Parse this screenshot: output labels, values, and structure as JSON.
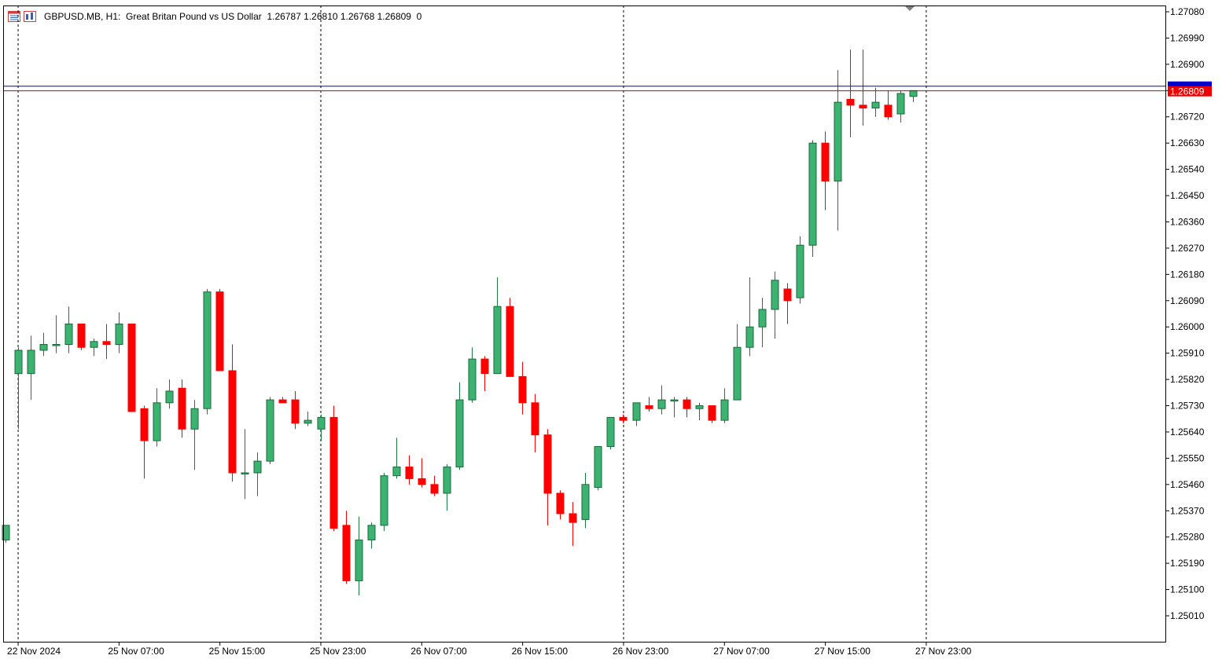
{
  "header": {
    "symbol": "GBPUSD.MB, H1:",
    "description": "Great Britan Pound vs US Dollar",
    "ohlc": "1.26787 1.26810 1.26768 1.26809  0"
  },
  "colors": {
    "bull": "#3cb371",
    "bear": "#ff0000",
    "bid_line": "#0000cc",
    "ask_line": "#cc0000",
    "grid_separator": "#000000",
    "axis": "#000000"
  },
  "icons": [
    "chart-window-icon",
    "indicator-icon"
  ],
  "chart_data": {
    "type": "candlestick",
    "timeframe": "H1",
    "y_range": [
      1.2493,
      1.271
    ],
    "y_ticks": [
      "1.27080",
      "1.26990",
      "1.26900",
      "1.26810",
      "1.26720",
      "1.26630",
      "1.26540",
      "1.26450",
      "1.26360",
      "1.26270",
      "1.26180",
      "1.26090",
      "1.26000",
      "1.25910",
      "1.25820",
      "1.25730",
      "1.25640",
      "1.25550",
      "1.25460",
      "1.25370",
      "1.25280",
      "1.25190",
      "1.25100",
      "1.25010"
    ],
    "x_labels": [
      {
        "index": 1,
        "label": "22 Nov 2024"
      },
      {
        "index": 9,
        "label": "25 Nov 07:00"
      },
      {
        "index": 17,
        "label": "25 Nov 15:00"
      },
      {
        "index": 25,
        "label": "25 Nov 23:00"
      },
      {
        "index": 33,
        "label": "26 Nov 07:00"
      },
      {
        "index": 41,
        "label": "26 Nov 15:00"
      },
      {
        "index": 49,
        "label": "26 Nov 23:00"
      },
      {
        "index": 57,
        "label": "27 Nov 07:00"
      },
      {
        "index": 65,
        "label": "27 Nov 15:00"
      },
      {
        "index": 73,
        "label": "27 Nov 23:00"
      }
    ],
    "separators": [
      1,
      25,
      49,
      73
    ],
    "bid_price": 1.26825,
    "current_price": 1.26809,
    "current_price_label": "1.26809",
    "candles": [
      [
        1.2527,
        1.2532,
        1.2526,
        1.2532
      ],
      [
        1.2584,
        1.2593,
        1.2565,
        1.2592
      ],
      [
        1.2584,
        1.2597,
        1.2575,
        1.2592
      ],
      [
        1.2592,
        1.2598,
        1.259,
        1.2594
      ],
      [
        1.2594,
        1.2604,
        1.2591,
        1.2594
      ],
      [
        1.2594,
        1.2607,
        1.2591,
        1.2601
      ],
      [
        1.2601,
        1.2601,
        1.2592,
        1.2593
      ],
      [
        1.2593,
        1.2596,
        1.259,
        1.2595
      ],
      [
        1.2595,
        1.2601,
        1.2589,
        1.2594
      ],
      [
        1.2594,
        1.2605,
        1.2591,
        1.2601
      ],
      [
        1.2601,
        1.2601,
        1.2571,
        1.2571
      ],
      [
        1.2572,
        1.2573,
        1.2548,
        1.2561
      ],
      [
        1.2561,
        1.2579,
        1.2559,
        1.2574
      ],
      [
        1.2574,
        1.2582,
        1.2572,
        1.2578
      ],
      [
        1.2579,
        1.2582,
        1.2562,
        1.2565
      ],
      [
        1.2565,
        1.2575,
        1.2551,
        1.2572
      ],
      [
        1.2572,
        1.2613,
        1.257,
        1.2612
      ],
      [
        1.2612,
        1.2613,
        1.2585,
        1.2585
      ],
      [
        1.2585,
        1.2594,
        1.2547,
        1.255
      ],
      [
        1.255,
        1.2565,
        1.2541,
        1.255
      ],
      [
        1.255,
        1.2557,
        1.2542,
        1.2554
      ],
      [
        1.2554,
        1.2576,
        1.2553,
        1.2575
      ],
      [
        1.2575,
        1.2576,
        1.2574,
        1.2574
      ],
      [
        1.2575,
        1.2578,
        1.2565,
        1.2567
      ],
      [
        1.2567,
        1.2571,
        1.2566,
        1.2568
      ],
      [
        1.2565,
        1.257,
        1.2561,
        1.2569
      ],
      [
        1.2569,
        1.2573,
        1.253,
        1.2531
      ],
      [
        1.2532,
        1.2537,
        1.2512,
        1.2513
      ],
      [
        1.2513,
        1.2535,
        1.2508,
        1.2527
      ],
      [
        1.2527,
        1.2533,
        1.2524,
        1.2532
      ],
      [
        1.2532,
        1.255,
        1.253,
        1.2549
      ],
      [
        1.2549,
        1.2562,
        1.2548,
        1.2552
      ],
      [
        1.2552,
        1.2556,
        1.2546,
        1.2548
      ],
      [
        1.2548,
        1.2555,
        1.2545,
        1.2546
      ],
      [
        1.2546,
        1.2549,
        1.2542,
        1.2543
      ],
      [
        1.2543,
        1.2553,
        1.2537,
        1.2552
      ],
      [
        1.2552,
        1.2581,
        1.2551,
        1.2575
      ],
      [
        1.2575,
        1.2593,
        1.2574,
        1.2589
      ],
      [
        1.2589,
        1.259,
        1.2578,
        1.2584
      ],
      [
        1.2584,
        1.2617,
        1.2584,
        1.2607
      ],
      [
        1.2607,
        1.261,
        1.2583,
        1.2583
      ],
      [
        1.2583,
        1.2588,
        1.257,
        1.2574
      ],
      [
        1.2574,
        1.2577,
        1.2557,
        1.2563
      ],
      [
        1.2563,
        1.2565,
        1.2532,
        1.2543
      ],
      [
        1.2543,
        1.2544,
        1.2534,
        1.2536
      ],
      [
        1.2536,
        1.254,
        1.2525,
        1.2533
      ],
      [
        1.2534,
        1.255,
        1.2531,
        1.2546
      ],
      [
        1.2545,
        1.2559,
        1.2544,
        1.2559
      ],
      [
        1.2559,
        1.2569,
        1.2558,
        1.2569
      ],
      [
        1.2569,
        1.257,
        1.2567,
        1.2568
      ],
      [
        1.2568,
        1.2574,
        1.2566,
        1.2574
      ],
      [
        1.2573,
        1.2576,
        1.2571,
        1.2572
      ],
      [
        1.2572,
        1.258,
        1.257,
        1.2575
      ],
      [
        1.2575,
        1.2576,
        1.2569,
        1.2575
      ],
      [
        1.2575,
        1.2576,
        1.2569,
        1.2572
      ],
      [
        1.2572,
        1.2574,
        1.2568,
        1.2573
      ],
      [
        1.2573,
        1.2573,
        1.2567,
        1.2568
      ],
      [
        1.2568,
        1.2579,
        1.2567,
        1.2575
      ],
      [
        1.2575,
        1.2601,
        1.2575,
        1.2593
      ],
      [
        1.2593,
        1.2617,
        1.259,
        1.26
      ],
      [
        1.26,
        1.261,
        1.2593,
        1.2606
      ],
      [
        1.2606,
        1.2619,
        1.2596,
        1.2616
      ],
      [
        1.2613,
        1.2615,
        1.2601,
        1.2609
      ],
      [
        1.261,
        1.2631,
        1.2608,
        1.2628
      ],
      [
        1.2628,
        1.2664,
        1.2624,
        1.2663
      ],
      [
        1.2663,
        1.2667,
        1.264,
        1.265
      ],
      [
        1.265,
        1.2688,
        1.2633,
        1.2677
      ],
      [
        1.2678,
        1.2695,
        1.2665,
        1.2676
      ],
      [
        1.2676,
        1.2695,
        1.2669,
        1.2675
      ],
      [
        1.2675,
        1.2682,
        1.2672,
        1.2677
      ],
      [
        1.2676,
        1.2681,
        1.2671,
        1.2672
      ],
      [
        1.2673,
        1.2681,
        1.267,
        1.268
      ],
      [
        1.2679,
        1.2681,
        1.2677,
        1.2681
      ]
    ]
  }
}
